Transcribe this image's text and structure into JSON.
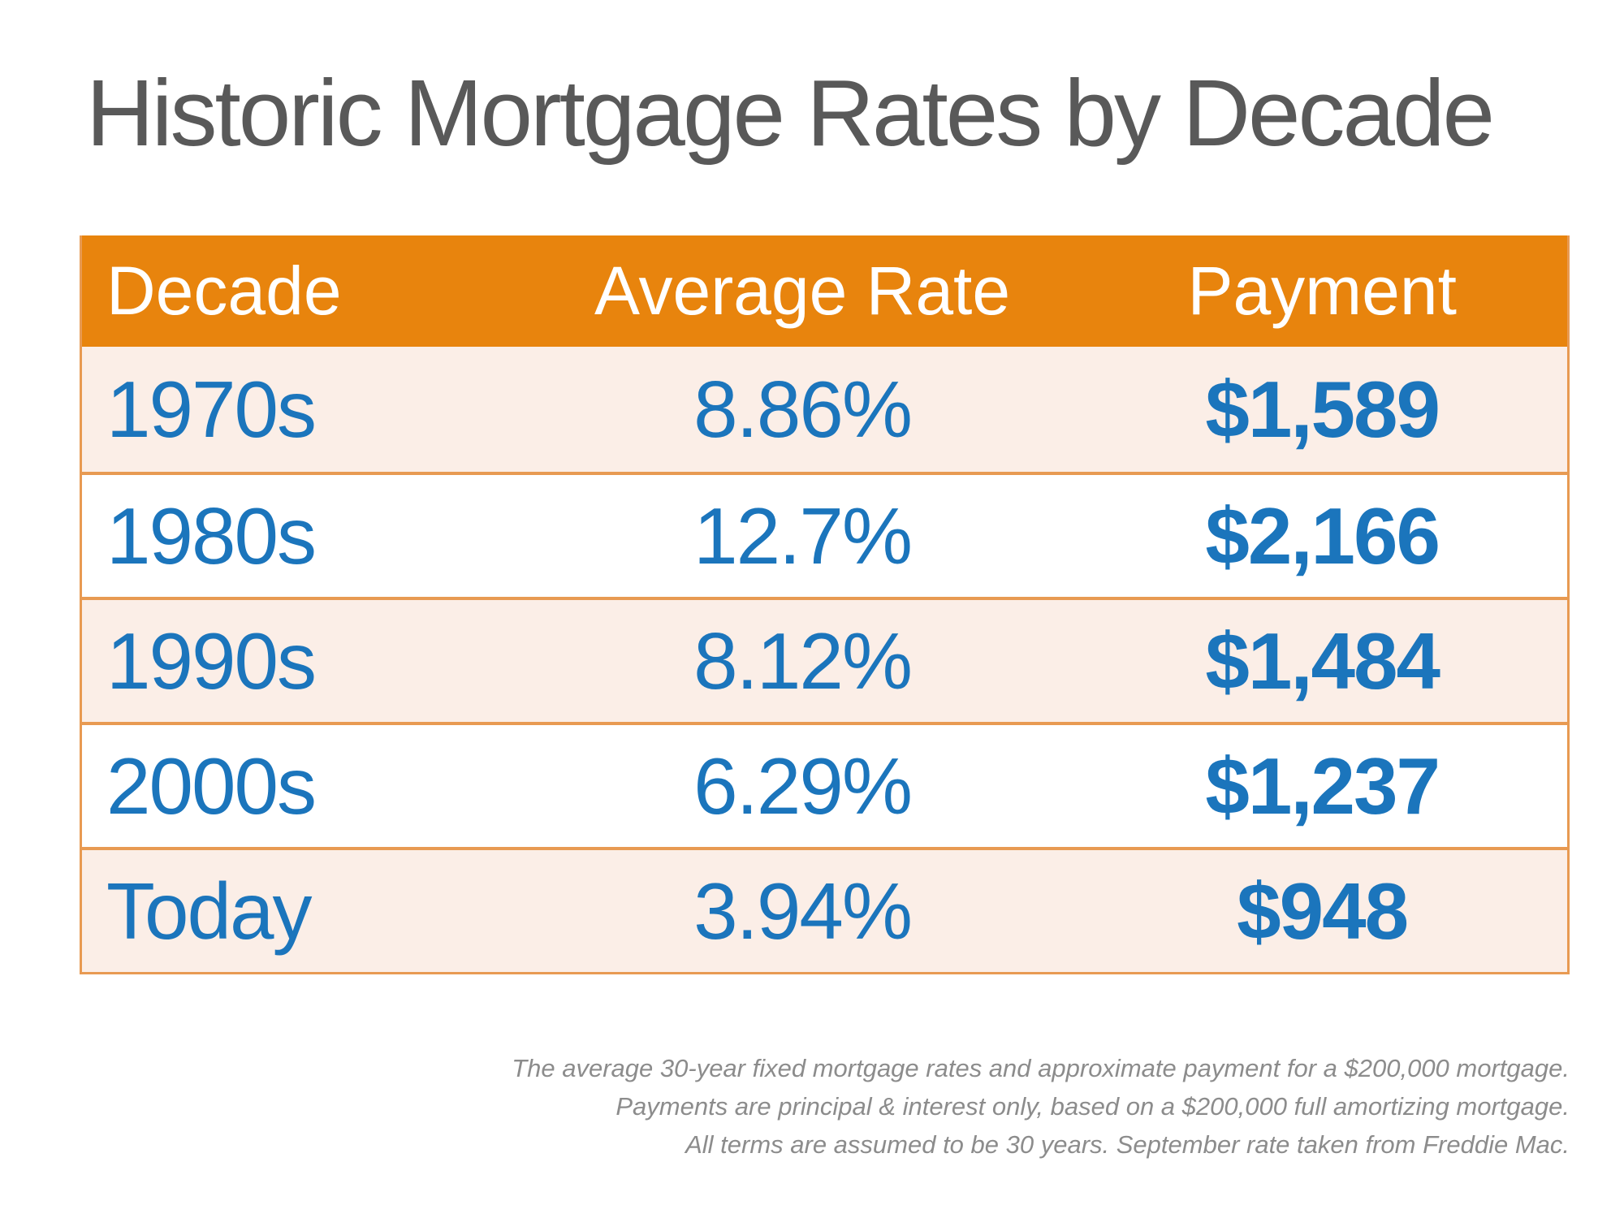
{
  "title": "Historic Mortgage Rates by Decade",
  "table": {
    "columns": [
      "Decade",
      "Average Rate",
      "Payment"
    ],
    "rows": [
      {
        "decade": "1970s",
        "rate": "8.86%",
        "payment": "$1,589"
      },
      {
        "decade": "1980s",
        "rate": "12.7%",
        "payment": "$2,166"
      },
      {
        "decade": "1990s",
        "rate": "8.12%",
        "payment": "$1,484"
      },
      {
        "decade": "2000s",
        "rate": "6.29%",
        "payment": "$1,237"
      },
      {
        "decade": "Today",
        "rate": "3.94%",
        "payment": "$948"
      }
    ]
  },
  "footnote": {
    "lines": [
      "The average 30-year fixed mortgage rates and approximate payment for a $200,000 mortgage.",
      "Payments are principal & interest only, based on a $200,000 full amortizing mortgage.",
      "All terms are assumed to be 30 years. September rate taken from Freddie Mac."
    ]
  },
  "colors": {
    "header_orange": "#E8840D",
    "row_border_orange": "#E89A52",
    "row_peach": "#FBEEE7",
    "row_white": "#FFFFFF",
    "value_blue": "#1B75BC",
    "title_gray": "#595959",
    "footnote_gray": "#8C8C8C"
  },
  "chart_data": {
    "type": "table",
    "title": "Historic Mortgage Rates by Decade",
    "columns": [
      "Decade",
      "Average Rate",
      "Payment"
    ],
    "categories": [
      "1970s",
      "1980s",
      "1990s",
      "2000s",
      "Today"
    ],
    "series": [
      {
        "name": "Average Rate (%)",
        "values": [
          8.86,
          12.7,
          8.12,
          6.29,
          3.94
        ]
      },
      {
        "name": "Payment ($)",
        "values": [
          1589,
          2166,
          1484,
          1237,
          948
        ]
      }
    ],
    "notes": "Rates and payments for a $200,000 30-year full amortizing mortgage; September rate from Freddie Mac."
  }
}
